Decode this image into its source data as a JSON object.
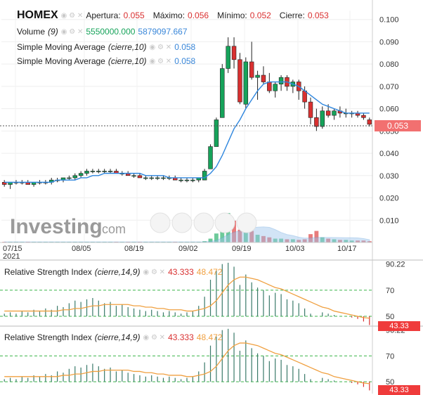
{
  "header": {
    "symbol": "HOMEX",
    "open_label": "Apertura:",
    "open_value": "0.055",
    "high_label": "Máximo:",
    "high_value": "0.056",
    "low_label": "Mínimo:",
    "low_value": "0.052",
    "close_label": "Cierre:",
    "close_value": "0.053"
  },
  "legends": {
    "volume_name": "Volume",
    "volume_param": "(9)",
    "volume_value_1": "5550000.000",
    "volume_value_2": "5879097.667",
    "sma1_name": "Simple Moving Average",
    "sma1_param": "(cierre,10)",
    "sma1_value": "0.058",
    "sma2_name": "Simple Moving Average",
    "sma2_param": "(cierre,10)",
    "sma2_value": "0.058",
    "rsi1_name": "Relative Strength Index",
    "rsi1_param": "(cierre,14,9)",
    "rsi1_value_1": "43.333",
    "rsi1_value_2": "48.472",
    "rsi2_name": "Relative Strength Index",
    "rsi2_param": "(cierre,14,9)",
    "rsi2_value_1": "43.333",
    "rsi2_value_2": "48.472"
  },
  "watermark": {
    "brand": "Investing",
    "suffix": ".com"
  },
  "price_tag": "0.053",
  "rsi_tag_1": "43.33",
  "rsi_tag_2": "43.33",
  "colors": {
    "up": "#16a35a",
    "down": "#d93030",
    "sma": "#2e86de",
    "rsi": "#3a7a6a",
    "signal": "#f0a040"
  },
  "chart_data": [
    {
      "type": "candlestick",
      "x_labels": [
        "07/15\n2021",
        "08/05",
        "08/19",
        "09/02",
        "09/19",
        "10/03",
        "10/17"
      ],
      "y_ticks": [
        "0.100",
        "0.090",
        "0.080",
        "0.070",
        "0.060",
        "0.050",
        "0.040",
        "0.030",
        "0.020",
        "0.010"
      ],
      "ylim": [
        0.0,
        0.104
      ],
      "candles": [
        [
          0.027,
          0.028,
          0.025,
          0.026
        ],
        [
          0.026,
          0.027,
          0.024,
          0.027
        ],
        [
          0.027,
          0.028,
          0.026,
          0.027
        ],
        [
          0.027,
          0.028,
          0.026,
          0.027
        ],
        [
          0.027,
          0.028,
          0.026,
          0.026
        ],
        [
          0.026,
          0.027,
          0.025,
          0.027
        ],
        [
          0.027,
          0.028,
          0.026,
          0.027
        ],
        [
          0.027,
          0.028,
          0.026,
          0.027
        ],
        [
          0.027,
          0.029,
          0.026,
          0.028
        ],
        [
          0.028,
          0.029,
          0.027,
          0.028
        ],
        [
          0.028,
          0.029,
          0.027,
          0.029
        ],
        [
          0.029,
          0.03,
          0.028,
          0.029
        ],
        [
          0.029,
          0.031,
          0.028,
          0.03
        ],
        [
          0.03,
          0.032,
          0.029,
          0.031
        ],
        [
          0.031,
          0.033,
          0.03,
          0.032
        ],
        [
          0.032,
          0.033,
          0.031,
          0.032
        ],
        [
          0.032,
          0.033,
          0.031,
          0.032
        ],
        [
          0.032,
          0.033,
          0.031,
          0.032
        ],
        [
          0.032,
          0.033,
          0.031,
          0.032
        ],
        [
          0.032,
          0.033,
          0.031,
          0.031
        ],
        [
          0.031,
          0.032,
          0.03,
          0.031
        ],
        [
          0.031,
          0.032,
          0.03,
          0.03
        ],
        [
          0.03,
          0.031,
          0.029,
          0.03
        ],
        [
          0.03,
          0.031,
          0.029,
          0.029
        ],
        [
          0.029,
          0.03,
          0.028,
          0.029
        ],
        [
          0.029,
          0.03,
          0.028,
          0.029
        ],
        [
          0.029,
          0.03,
          0.028,
          0.029
        ],
        [
          0.029,
          0.03,
          0.028,
          0.029
        ],
        [
          0.029,
          0.03,
          0.028,
          0.029
        ],
        [
          0.029,
          0.03,
          0.028,
          0.028
        ],
        [
          0.028,
          0.029,
          0.027,
          0.028
        ],
        [
          0.028,
          0.029,
          0.027,
          0.028
        ],
        [
          0.028,
          0.029,
          0.027,
          0.028
        ],
        [
          0.028,
          0.029,
          0.027,
          0.029
        ],
        [
          0.028,
          0.033,
          0.028,
          0.032
        ],
        [
          0.033,
          0.044,
          0.033,
          0.043
        ],
        [
          0.043,
          0.056,
          0.043,
          0.055
        ],
        [
          0.056,
          0.08,
          0.056,
          0.078
        ],
        [
          0.078,
          0.092,
          0.076,
          0.088
        ],
        [
          0.088,
          0.092,
          0.078,
          0.082
        ],
        [
          0.082,
          0.085,
          0.062,
          0.063
        ],
        [
          0.062,
          0.083,
          0.06,
          0.081
        ],
        [
          0.081,
          0.09,
          0.073,
          0.074
        ],
        [
          0.074,
          0.077,
          0.064,
          0.075
        ],
        [
          0.075,
          0.079,
          0.071,
          0.072
        ],
        [
          0.072,
          0.076,
          0.067,
          0.068
        ],
        [
          0.068,
          0.072,
          0.065,
          0.071
        ],
        [
          0.071,
          0.075,
          0.068,
          0.074
        ],
        [
          0.074,
          0.075,
          0.068,
          0.07
        ],
        [
          0.07,
          0.073,
          0.067,
          0.072
        ],
        [
          0.072,
          0.073,
          0.064,
          0.068
        ],
        [
          0.068,
          0.07,
          0.06,
          0.063
        ],
        [
          0.063,
          0.065,
          0.053,
          0.056
        ],
        [
          0.056,
          0.06,
          0.05,
          0.052
        ],
        [
          0.052,
          0.061,
          0.051,
          0.059
        ],
        [
          0.059,
          0.062,
          0.056,
          0.057
        ],
        [
          0.057,
          0.06,
          0.055,
          0.059
        ],
        [
          0.059,
          0.061,
          0.056,
          0.058
        ],
        [
          0.058,
          0.06,
          0.056,
          0.058
        ],
        [
          0.058,
          0.059,
          0.056,
          0.058
        ],
        [
          0.058,
          0.059,
          0.056,
          0.057
        ],
        [
          0.057,
          0.058,
          0.055,
          0.056
        ],
        [
          0.055,
          0.056,
          0.052,
          0.053
        ]
      ],
      "sma": [
        0.027,
        0.027,
        0.027,
        0.027,
        0.027,
        0.027,
        0.027,
        0.027,
        0.027,
        0.028,
        0.028,
        0.028,
        0.028,
        0.029,
        0.029,
        0.03,
        0.03,
        0.031,
        0.031,
        0.031,
        0.031,
        0.031,
        0.031,
        0.031,
        0.03,
        0.03,
        0.03,
        0.03,
        0.029,
        0.029,
        0.029,
        0.029,
        0.029,
        0.029,
        0.029,
        0.031,
        0.034,
        0.039,
        0.045,
        0.051,
        0.055,
        0.06,
        0.064,
        0.068,
        0.071,
        0.072,
        0.072,
        0.072,
        0.072,
        0.071,
        0.07,
        0.068,
        0.066,
        0.064,
        0.062,
        0.061,
        0.06,
        0.059,
        0.058,
        0.058,
        0.058,
        0.058,
        0.058
      ],
      "volume": [
        0.1,
        0.1,
        0.1,
        0.1,
        0.1,
        0.1,
        0.1,
        0.1,
        0.1,
        0.1,
        0.1,
        0.1,
        0.1,
        0.1,
        0.1,
        0.1,
        0.1,
        0.1,
        0.1,
        0.1,
        0.1,
        0.1,
        0.1,
        0.1,
        0.1,
        0.1,
        0.1,
        0.1,
        0.1,
        0.1,
        0.1,
        0.1,
        0.1,
        0.1,
        0.2,
        0.6,
        1.4,
        3.8,
        4.6,
        3.4,
        2.0,
        2.6,
        1.8,
        1.2,
        1.0,
        0.8,
        0.6,
        0.6,
        0.5,
        0.5,
        0.4,
        0.5,
        1.3,
        1.8,
        0.8,
        0.6,
        0.5,
        0.4,
        0.4,
        0.3,
        0.3,
        0.3,
        0.2
      ]
    },
    {
      "type": "rsi",
      "y_ticks": [
        "90.22",
        "70",
        "50"
      ],
      "ylim": [
        43,
        92
      ],
      "rsi": [
        52,
        53,
        52,
        54,
        53,
        55,
        54,
        56,
        55,
        58,
        57,
        60,
        62,
        61,
        63,
        64,
        62,
        60,
        61,
        58,
        59,
        57,
        56,
        55,
        54,
        55,
        54,
        53,
        54,
        53,
        52,
        53,
        54,
        58,
        65,
        78,
        85,
        90,
        91,
        88,
        74,
        82,
        76,
        72,
        70,
        66,
        68,
        67,
        63,
        62,
        60,
        56,
        52,
        50,
        53,
        52,
        51,
        50,
        50,
        49,
        48,
        46,
        43.3
      ],
      "signal": [
        54,
        54,
        54,
        54,
        54,
        54,
        54,
        54,
        54,
        54,
        55,
        55,
        56,
        56,
        57,
        58,
        58,
        59,
        59,
        59,
        59,
        59,
        58,
        58,
        57,
        57,
        56,
        56,
        55,
        55,
        55,
        54,
        54,
        55,
        56,
        58,
        62,
        68,
        74,
        78,
        80,
        80,
        79,
        78,
        76,
        74,
        72,
        71,
        69,
        67,
        65,
        63,
        61,
        59,
        57,
        56,
        54,
        53,
        52,
        51,
        50,
        49,
        48.5
      ]
    }
  ]
}
